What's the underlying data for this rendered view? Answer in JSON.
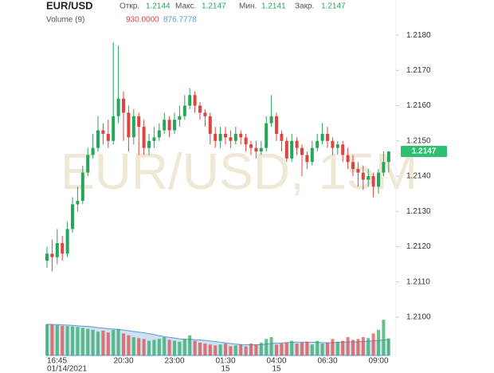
{
  "chart_data": {
    "type": "candlestick",
    "title": "EUR/USD",
    "watermark": "EUR/USD, 15M",
    "ohlc_names": [
      "Откр.",
      "Макс.",
      "Мин.",
      "Закр."
    ],
    "volume_title": "Volume (9)",
    "volume_last_label": "930.0000",
    "volume_ma_last_label": "876.7778",
    "up_color": "#26a65b",
    "down_color": "#e0443f",
    "ma_color": "#5b9bd5",
    "open": [
      1.2116,
      1.2118,
      1.2117,
      1.2121,
      1.2118,
      1.2125,
      1.2132,
      1.2133,
      1.2141,
      1.2146,
      1.2148,
      1.2153,
      1.2152,
      1.215,
      1.2157,
      1.2162,
      1.2158,
      1.2151,
      1.2157,
      1.2154,
      1.2148,
      1.215,
      1.2151,
      1.2153,
      1.2156,
      1.2153,
      1.2156,
      1.2157,
      1.216,
      1.2163,
      1.216,
      1.2158,
      1.2157,
      1.2152,
      1.215,
      1.2152,
      1.2151,
      1.215,
      1.2152,
      1.2151,
      1.2149,
      1.2148,
      1.2147,
      1.2148,
      1.2155,
      1.2157,
      1.2152,
      1.215,
      1.2145,
      1.215,
      1.2148,
      1.2146,
      1.2144,
      1.2148,
      1.215,
      1.2152,
      1.215,
      1.2148,
      1.2149,
      1.2146,
      1.2144,
      1.2142,
      1.2141,
      1.2139,
      1.214,
      1.2137,
      1.2141,
      1.2144
    ],
    "high": [
      1.212,
      1.2122,
      1.2125,
      1.2123,
      1.2127,
      1.2134,
      1.2137,
      1.2143,
      1.2148,
      1.2152,
      1.2157,
      1.2155,
      1.2156,
      1.2178,
      1.2177,
      1.2164,
      1.216,
      1.2159,
      1.2158,
      1.2156,
      1.2152,
      1.2154,
      1.2155,
      1.2158,
      1.2157,
      1.2158,
      1.216,
      1.2163,
      1.2165,
      1.2164,
      1.2161,
      1.2159,
      1.2158,
      1.2154,
      1.2154,
      1.2154,
      1.2153,
      1.2154,
      1.2153,
      1.2152,
      1.215,
      1.215,
      1.215,
      1.2157,
      1.2163,
      1.2158,
      1.2153,
      1.2151,
      1.2152,
      1.2151,
      1.2149,
      1.2147,
      1.215,
      1.2152,
      1.2155,
      1.2154,
      1.2151,
      1.215,
      1.215,
      1.2148,
      1.2146,
      1.2144,
      1.2143,
      1.2142,
      1.2141,
      1.2142,
      1.2147,
      1.2147
    ],
    "low": [
      1.2114,
      1.2113,
      1.2115,
      1.2116,
      1.2117,
      1.2124,
      1.213,
      1.2132,
      1.214,
      1.2145,
      1.2147,
      1.2149,
      1.2148,
      1.2149,
      1.2155,
      1.215,
      1.2147,
      1.2149,
      1.2146,
      1.2146,
      1.2146,
      1.2148,
      1.215,
      1.2152,
      1.2151,
      1.2152,
      1.2154,
      1.2156,
      1.2159,
      1.2158,
      1.2156,
      1.2154,
      1.2149,
      1.2148,
      1.2148,
      1.2149,
      1.2148,
      1.2149,
      1.2149,
      1.2147,
      1.2146,
      1.2145,
      1.2146,
      1.2147,
      1.2154,
      1.215,
      1.2147,
      1.2144,
      1.2144,
      1.2146,
      1.214,
      1.2142,
      1.2143,
      1.2147,
      1.2149,
      1.2148,
      1.2146,
      1.2146,
      1.2144,
      1.2142,
      1.214,
      1.2137,
      1.2136,
      1.2137,
      1.2134,
      1.2135,
      1.214,
      1.2141
    ],
    "close": [
      1.2118,
      1.2117,
      1.2121,
      1.2118,
      1.2125,
      1.2132,
      1.2133,
      1.2141,
      1.2146,
      1.2148,
      1.2153,
      1.2152,
      1.215,
      1.2157,
      1.2162,
      1.2158,
      1.2151,
      1.2157,
      1.2154,
      1.2148,
      1.215,
      1.2151,
      1.2153,
      1.2156,
      1.2153,
      1.2156,
      1.2157,
      1.216,
      1.2163,
      1.216,
      1.2158,
      1.2157,
      1.2152,
      1.215,
      1.2152,
      1.2151,
      1.215,
      1.2152,
      1.2151,
      1.2149,
      1.2148,
      1.2147,
      1.2148,
      1.2155,
      1.2157,
      1.2152,
      1.215,
      1.2145,
      1.215,
      1.2148,
      1.2146,
      1.2144,
      1.2148,
      1.215,
      1.2152,
      1.215,
      1.2148,
      1.2149,
      1.2146,
      1.2144,
      1.2142,
      1.2141,
      1.2139,
      1.214,
      1.2137,
      1.2141,
      1.2144,
      1.2147
    ],
    "volume": [
      1700,
      1680,
      1650,
      1620,
      1600,
      1580,
      1560,
      1500,
      1450,
      1400,
      1300,
      1350,
      1250,
      1400,
      1450,
      1200,
      1100,
      1000,
      950,
      900,
      800,
      850,
      900,
      1000,
      850,
      800,
      750,
      900,
      1100,
      800,
      700,
      650,
      600,
      550,
      600,
      650,
      500,
      550,
      600,
      500,
      650,
      600,
      700,
      900,
      1000,
      600,
      650,
      700,
      800,
      650,
      700,
      750,
      600,
      800,
      650,
      700,
      900,
      750,
      800,
      1000,
      850,
      900,
      1000,
      950,
      1200,
      1400,
      1950,
      930
    ],
    "volume_ma": [
      1700,
      1695,
      1685,
      1670,
      1655,
      1640,
      1620,
      1600,
      1580,
      1560,
      1520,
      1490,
      1460,
      1440,
      1420,
      1390,
      1350,
      1310,
      1270,
      1240,
      1190,
      1140,
      1080,
      1030,
      990,
      950,
      910,
      880,
      880,
      860,
      850,
      820,
      790,
      760,
      720,
      690,
      650,
      620,
      600,
      590,
      580,
      580,
      590,
      620,
      660,
      670,
      680,
      700,
      720,
      730,
      730,
      730,
      720,
      720,
      700,
      690,
      700,
      720,
      730,
      740,
      740,
      750,
      760,
      780,
      800,
      820,
      850,
      876.7778
    ],
    "ylim": [
      1.2095,
      1.2185
    ],
    "vlim": [
      0,
      2000
    ],
    "yticks": [
      {
        "value": 1.21,
        "label": "1.2100"
      },
      {
        "value": 1.211,
        "label": "1.2110"
      },
      {
        "value": 1.212,
        "label": "1.2120"
      },
      {
        "value": 1.213,
        "label": "1.2130"
      },
      {
        "value": 1.214,
        "label": "1.2140"
      },
      {
        "value": 1.215,
        "label": "1.2150"
      },
      {
        "value": 1.216,
        "label": "1.2160"
      },
      {
        "value": 1.217,
        "label": "1.2170"
      },
      {
        "value": 1.218,
        "label": "1.2180"
      }
    ],
    "xticks": [
      {
        "value": 0,
        "label": "16:45"
      },
      {
        "value": 15,
        "label": "20:30"
      },
      {
        "value": 25,
        "label": "23:00"
      },
      {
        "value": 35,
        "label": "01:30"
      },
      {
        "value": 45,
        "label": "04:00"
      },
      {
        "value": 55,
        "label": "06:30"
      },
      {
        "value": 65,
        "label": "09:00"
      }
    ],
    "date_labels": [
      {
        "value": 0,
        "label": "01/14/2021"
      },
      {
        "value": 35,
        "label": "15"
      },
      {
        "value": 45,
        "label": "15"
      }
    ]
  }
}
